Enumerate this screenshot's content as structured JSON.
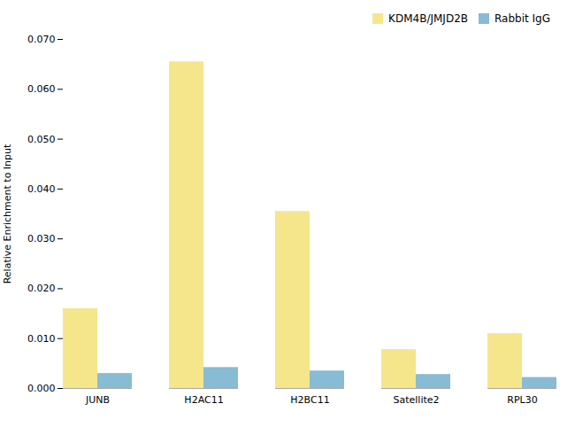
{
  "chart_data": {
    "type": "bar",
    "categories": [
      "JUNB",
      "H2AC11",
      "H2BC11",
      "Satellite2",
      "RPL30"
    ],
    "series": [
      {
        "name": "KDM4B/JMJD2B",
        "color": "#F5E68C",
        "values": [
          0.016,
          0.0655,
          0.0355,
          0.0078,
          0.011
        ]
      },
      {
        "name": "Rabbit IgG",
        "color": "#88BBD4",
        "values": [
          0.003,
          0.0042,
          0.0035,
          0.0028,
          0.0022
        ]
      }
    ],
    "ylabel": "Relative Enrichment to Input",
    "ylim": [
      0,
      0.07
    ],
    "yticks": [
      {
        "value": 0.0,
        "label": "0.000"
      },
      {
        "value": 0.01,
        "label": "0.010"
      },
      {
        "value": 0.02,
        "label": "0.020"
      },
      {
        "value": 0.03,
        "label": "0.030"
      },
      {
        "value": 0.04,
        "label": "0.040"
      },
      {
        "value": 0.05,
        "label": "0.050"
      },
      {
        "value": 0.06,
        "label": "0.060"
      },
      {
        "value": 0.07,
        "label": "0.070"
      }
    ],
    "legend": "upper right",
    "grid": false
  }
}
